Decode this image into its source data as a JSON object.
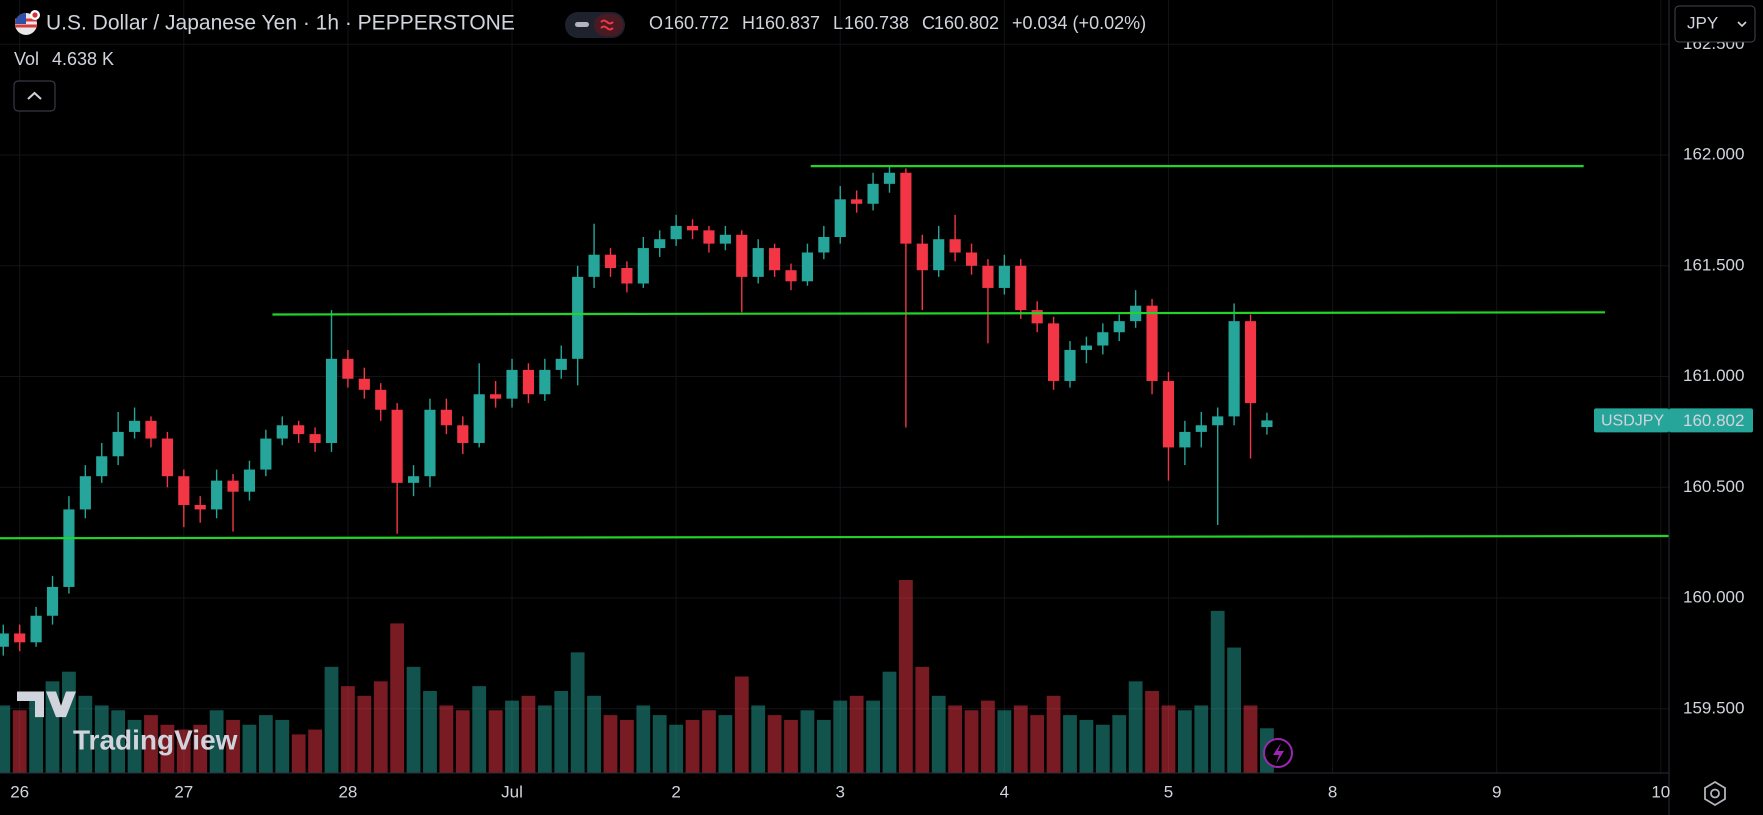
{
  "chart_data": {
    "type": "candlestick",
    "title": "U.S. Dollar / Japanese Yen · 1h · PEPPERSTONE",
    "legend_labels": [
      "O",
      "H",
      "L",
      "C"
    ],
    "change_label": "+0.034 (+0.02%)",
    "volume_title": "Vol",
    "volume_label": "4.638 K",
    "currency": "JPY",
    "symbol_tag": "USDJPY",
    "watermark": "TradingView",
    "up_color": "#26a69a",
    "down_color": "#f23645",
    "level_color": "#22d428",
    "grid": true,
    "xlim": [
      -0.12,
      10.05
    ],
    "ylim": [
      159.21,
      162.7
    ],
    "xticks": [
      {
        "value": 0,
        "label": "26"
      },
      {
        "value": 1,
        "label": "27"
      },
      {
        "value": 2,
        "label": "28"
      },
      {
        "value": 3,
        "label": "Jul"
      },
      {
        "value": 4,
        "label": "2"
      },
      {
        "value": 5,
        "label": "3"
      },
      {
        "value": 6,
        "label": "4"
      },
      {
        "value": 7,
        "label": "5"
      },
      {
        "value": 8,
        "label": "8"
      },
      {
        "value": 9,
        "label": "9"
      },
      {
        "value": 10,
        "label": "10"
      }
    ],
    "yticks": [
      {
        "value": 159.5,
        "label": "159.500"
      },
      {
        "value": 160,
        "label": "160.000"
      },
      {
        "value": 160.5,
        "label": "160.500"
      },
      {
        "value": 161,
        "label": "161.000"
      },
      {
        "value": 161.5,
        "label": "161.500"
      },
      {
        "value": 162,
        "label": "162.000"
      },
      {
        "value": 162.5,
        "label": "162.500"
      }
    ],
    "x": [
      -0.1,
      0,
      0.1,
      0.2,
      0.3,
      0.4,
      0.5,
      0.6,
      0.7,
      0.8,
      0.9,
      1,
      1.1,
      1.2,
      1.3,
      1.4,
      1.5,
      1.6,
      1.7,
      1.8,
      1.9,
      2,
      2.1,
      2.2,
      2.3,
      2.4,
      2.5,
      2.6,
      2.7,
      2.8,
      2.9,
      3,
      3.1,
      3.2,
      3.3,
      3.4,
      3.5,
      3.6,
      3.7,
      3.8,
      3.9,
      4,
      4.1,
      4.2,
      4.3,
      4.4,
      4.5,
      4.6,
      4.7,
      4.8,
      4.9,
      5,
      5.1,
      5.2,
      5.3,
      5.4,
      5.5,
      5.6,
      5.7,
      5.8,
      5.9,
      6,
      6.1,
      6.2,
      6.3,
      6.4,
      6.5,
      6.6,
      6.7,
      6.8,
      6.9,
      7,
      7.1,
      7.2,
      7.3,
      7.4,
      7.5,
      7.6
    ],
    "ohlc": [
      [
        159.78,
        159.88,
        159.74,
        159.84
      ],
      [
        159.84,
        159.88,
        159.76,
        159.8
      ],
      [
        159.8,
        159.96,
        159.78,
        159.92
      ],
      [
        159.92,
        160.1,
        159.88,
        160.05
      ],
      [
        160.05,
        160.46,
        160.02,
        160.4
      ],
      [
        160.4,
        160.6,
        160.36,
        160.55
      ],
      [
        160.55,
        160.7,
        160.52,
        160.64
      ],
      [
        160.64,
        160.84,
        160.6,
        160.75
      ],
      [
        160.75,
        160.86,
        160.72,
        160.8
      ],
      [
        160.8,
        160.82,
        160.68,
        160.72
      ],
      [
        160.72,
        160.75,
        160.5,
        160.55
      ],
      [
        160.55,
        160.58,
        160.32,
        160.42
      ],
      [
        160.42,
        160.46,
        160.34,
        160.4
      ],
      [
        160.4,
        160.58,
        160.36,
        160.53
      ],
      [
        160.53,
        160.56,
        160.3,
        160.48
      ],
      [
        160.48,
        160.62,
        160.44,
        160.58
      ],
      [
        160.58,
        160.76,
        160.55,
        160.72
      ],
      [
        160.72,
        160.82,
        160.69,
        160.78
      ],
      [
        160.78,
        160.8,
        160.7,
        160.74
      ],
      [
        160.74,
        160.77,
        160.66,
        160.7
      ],
      [
        160.7,
        161.3,
        160.66,
        161.08
      ],
      [
        161.08,
        161.12,
        160.95,
        160.99
      ],
      [
        160.99,
        161.04,
        160.9,
        160.94
      ],
      [
        160.94,
        160.97,
        160.8,
        160.85
      ],
      [
        160.85,
        160.88,
        160.29,
        160.52
      ],
      [
        160.52,
        160.6,
        160.46,
        160.55
      ],
      [
        160.55,
        160.9,
        160.5,
        160.85
      ],
      [
        160.85,
        160.9,
        160.74,
        160.78
      ],
      [
        160.78,
        160.82,
        160.65,
        160.7
      ],
      [
        160.7,
        161.06,
        160.68,
        160.92
      ],
      [
        160.92,
        160.98,
        160.86,
        160.9
      ],
      [
        160.9,
        161.08,
        160.86,
        161.03
      ],
      [
        161.03,
        161.06,
        160.88,
        160.92
      ],
      [
        160.92,
        161.08,
        160.89,
        161.03
      ],
      [
        161.03,
        161.14,
        160.99,
        161.08
      ],
      [
        161.08,
        161.5,
        160.96,
        161.45
      ],
      [
        161.45,
        161.69,
        161.4,
        161.55
      ],
      [
        161.55,
        161.58,
        161.45,
        161.49
      ],
      [
        161.49,
        161.52,
        161.38,
        161.42
      ],
      [
        161.42,
        161.63,
        161.4,
        161.58
      ],
      [
        161.58,
        161.66,
        161.54,
        161.62
      ],
      [
        161.62,
        161.73,
        161.59,
        161.68
      ],
      [
        161.68,
        161.71,
        161.62,
        161.66
      ],
      [
        161.66,
        161.68,
        161.56,
        161.6
      ],
      [
        161.6,
        161.68,
        161.57,
        161.64
      ],
      [
        161.64,
        161.66,
        161.29,
        161.45
      ],
      [
        161.45,
        161.62,
        161.42,
        161.58
      ],
      [
        161.58,
        161.6,
        161.45,
        161.48
      ],
      [
        161.48,
        161.51,
        161.39,
        161.43
      ],
      [
        161.43,
        161.6,
        161.41,
        161.56
      ],
      [
        161.56,
        161.68,
        161.53,
        161.63
      ],
      [
        161.63,
        161.86,
        161.6,
        161.8
      ],
      [
        161.8,
        161.84,
        161.74,
        161.78
      ],
      [
        161.78,
        161.92,
        161.75,
        161.87
      ],
      [
        161.87,
        161.95,
        161.83,
        161.92
      ],
      [
        161.92,
        161.94,
        160.77,
        161.6
      ],
      [
        161.6,
        161.64,
        161.3,
        161.48
      ],
      [
        161.48,
        161.68,
        161.45,
        161.62
      ],
      [
        161.62,
        161.73,
        161.52,
        161.56
      ],
      [
        161.56,
        161.6,
        161.46,
        161.5
      ],
      [
        161.5,
        161.53,
        161.15,
        161.4
      ],
      [
        161.4,
        161.55,
        161.37,
        161.5
      ],
      [
        161.5,
        161.53,
        161.26,
        161.3
      ],
      [
        161.3,
        161.34,
        161.2,
        161.24
      ],
      [
        161.24,
        161.27,
        160.94,
        160.98
      ],
      [
        160.98,
        161.16,
        160.95,
        161.12
      ],
      [
        161.12,
        161.18,
        161.06,
        161.14
      ],
      [
        161.14,
        161.24,
        161.1,
        161.2
      ],
      [
        161.2,
        161.28,
        161.16,
        161.25
      ],
      [
        161.25,
        161.39,
        161.22,
        161.32
      ],
      [
        161.32,
        161.35,
        160.92,
        160.98
      ],
      [
        160.98,
        161.02,
        160.53,
        160.68
      ],
      [
        160.68,
        160.8,
        160.6,
        160.75
      ],
      [
        160.75,
        160.84,
        160.68,
        160.78
      ],
      [
        160.78,
        160.86,
        160.33,
        160.82
      ],
      [
        160.82,
        161.33,
        160.78,
        161.25
      ],
      [
        161.25,
        161.28,
        160.63,
        160.88
      ],
      [
        160.772,
        160.837,
        160.738,
        160.802
      ]
    ],
    "volume": [
      7000,
      6500,
      8000,
      9500,
      10500,
      8000,
      7000,
      6500,
      5500,
      6000,
      5000,
      4500,
      5000,
      6500,
      5500,
      5000,
      6000,
      5500,
      4000,
      4500,
      11000,
      9000,
      8000,
      9500,
      15500,
      11000,
      8500,
      7000,
      6500,
      9000,
      6500,
      7500,
      8000,
      7000,
      8500,
      12500,
      8000,
      6000,
      5500,
      7000,
      6000,
      5000,
      5500,
      6500,
      6000,
      10000,
      7000,
      6000,
      5500,
      6500,
      5500,
      7500,
      8000,
      7500,
      10500,
      20000,
      11000,
      8000,
      7000,
      6500,
      7500,
      6500,
      7000,
      6000,
      8000,
      6000,
      5500,
      5000,
      6000,
      9500,
      8500,
      7000,
      6500,
      7000,
      16800,
      13000,
      7000,
      4638
    ],
    "levels": [
      {
        "x": [
          4.82,
          9.53
        ],
        "y": [
          161.95,
          161.95
        ]
      },
      {
        "x": [
          1.54,
          9.66
        ],
        "y": [
          161.28,
          161.29
        ]
      },
      {
        "x": [
          -0.12,
          10.05
        ],
        "y": [
          160.27,
          160.28
        ]
      }
    ]
  }
}
